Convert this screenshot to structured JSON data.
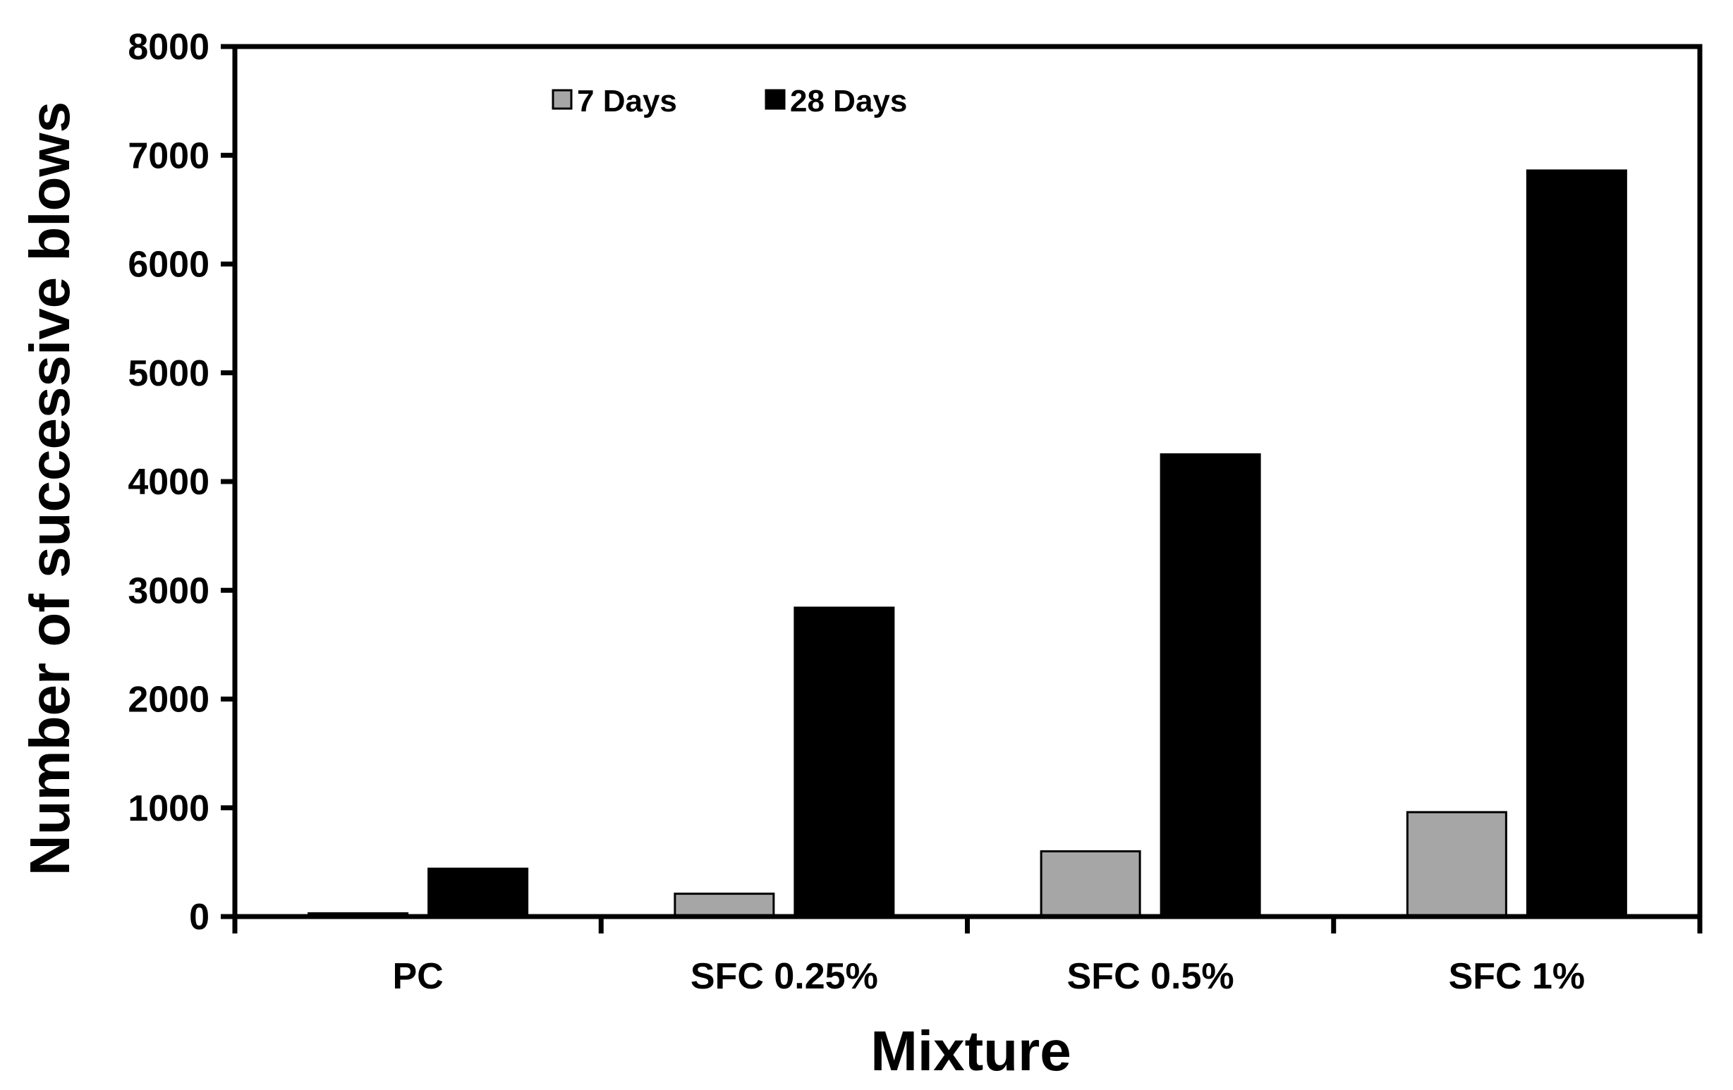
{
  "chart_data": {
    "type": "bar",
    "title": "",
    "xlabel": "Mixture",
    "ylabel": "Number of successive blows",
    "categories": [
      "PC",
      "SFC 0.25%",
      "SFC 0.5%",
      "SFC 1%"
    ],
    "series": [
      {
        "name": "7 Days",
        "color": "#a6a6a6",
        "values": [
          30,
          210,
          600,
          960
        ]
      },
      {
        "name": "28 Days",
        "color": "#000000",
        "values": [
          440,
          2840,
          4250,
          6860
        ]
      }
    ],
    "ylim": [
      0,
      8000
    ],
    "yticks": [
      0,
      1000,
      2000,
      3000,
      4000,
      5000,
      6000,
      7000,
      8000
    ],
    "grid": false,
    "legend_position": "top-left"
  }
}
